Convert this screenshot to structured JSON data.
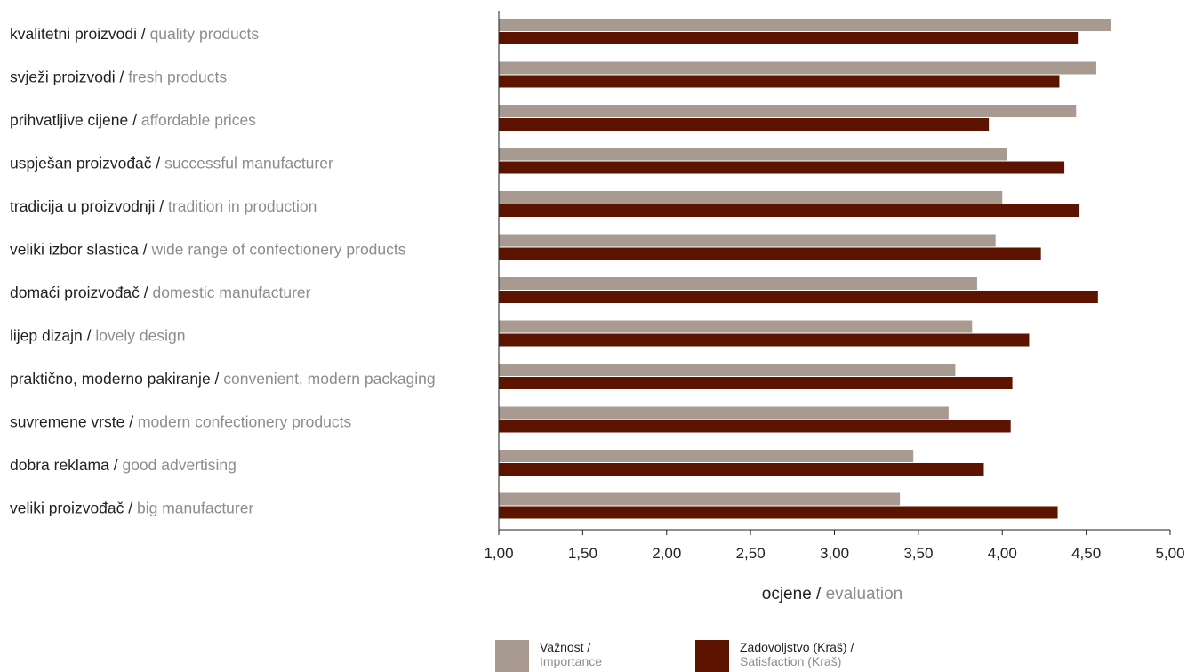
{
  "chart_data": {
    "type": "bar",
    "orientation": "horizontal",
    "categories": [
      {
        "main": "kvalitetni proizvodi",
        "sub": "quality products"
      },
      {
        "main": "svježi proizvodi",
        "sub": "fresh products"
      },
      {
        "main": "prihvatljive cijene",
        "sub": "affordable prices"
      },
      {
        "main": "uspješan proizvođač",
        "sub": "successful manufacturer"
      },
      {
        "main": "tradicija u proizvodnji",
        "sub": "tradition in production"
      },
      {
        "main": "veliki izbor slastica",
        "sub": "wide range of confectionery products"
      },
      {
        "main": "domaći proizvođač",
        "sub": "domestic manufacturer"
      },
      {
        "main": "lijep dizajn",
        "sub": "lovely design"
      },
      {
        "main": "praktično, moderno pakiranje",
        "sub": "convenient, modern packaging"
      },
      {
        "main": "suvremene vrste",
        "sub": "modern confectionery products"
      },
      {
        "main": "dobra reklama",
        "sub": "good advertising"
      },
      {
        "main": "veliki proizvođač",
        "sub": "big manufacturer"
      }
    ],
    "series": [
      {
        "name_main": "Važnost /",
        "name_sub": "Importance",
        "color": "#a89a90",
        "values": [
          4.65,
          4.56,
          4.44,
          4.03,
          4.0,
          3.96,
          3.85,
          3.82,
          3.72,
          3.68,
          3.47,
          3.39
        ]
      },
      {
        "name_main": "Zadovoljstvo (Kraš) /",
        "name_sub": "Satisfaction (Kraš)",
        "color": "#5c1300",
        "values": [
          4.45,
          4.34,
          3.92,
          4.37,
          4.46,
          4.23,
          4.57,
          4.16,
          4.06,
          4.05,
          3.89,
          4.33
        ]
      }
    ],
    "xlim": [
      1.0,
      5.0
    ],
    "xticks": [
      "1,00",
      "1,50",
      "2,00",
      "2,50",
      "3,00",
      "3,50",
      "4,00",
      "4,50",
      "5,00"
    ],
    "xlabel_main": "ocjene",
    "xlabel_sub": "evaluation",
    "grid": false,
    "legend_position": "bottom"
  }
}
